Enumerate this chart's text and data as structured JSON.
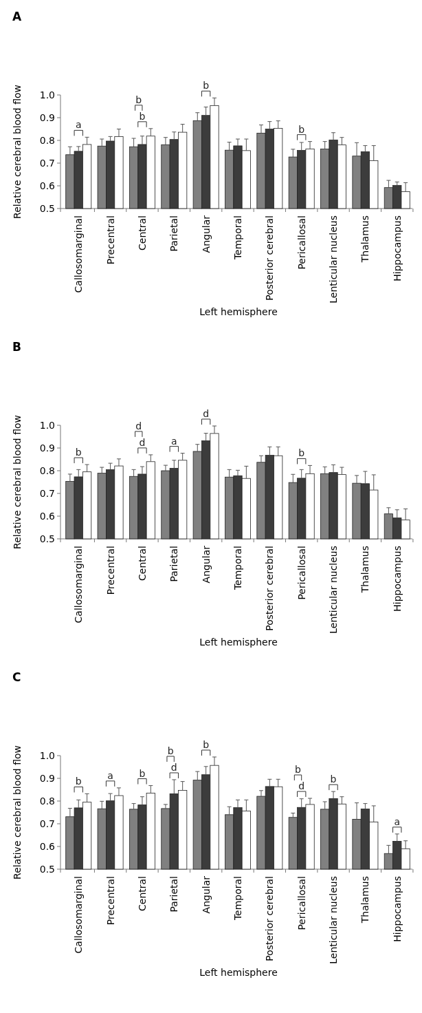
{
  "chart_data": [
    {
      "type": "bar",
      "title": "A",
      "xlabel": "Left hemisphere",
      "ylabel": "Relative cerebral blood flow",
      "categories": [
        "Callosomarginal",
        "Precentral",
        "Central",
        "Parietal",
        "Angular",
        "Temporal",
        "Posterior cerebral",
        "Pericallosal",
        "Lenticular nucleus",
        "Thalamus",
        "Hippocampus"
      ],
      "series": [
        {
          "color": "#808080",
          "values": [
            0.737,
            0.775,
            0.772,
            0.781,
            0.887,
            0.757,
            0.832,
            0.727,
            0.762,
            0.731,
            0.592
          ],
          "errors": [
            [
              0.737,
              0.772
            ],
            [
              0.775,
              0.806
            ],
            [
              0.772,
              0.809
            ],
            [
              0.781,
              0.813
            ],
            [
              0.887,
              0.922
            ],
            [
              0.757,
              0.792
            ],
            [
              0.832,
              0.868
            ],
            [
              0.727,
              0.761
            ],
            [
              0.762,
              0.795
            ],
            [
              0.731,
              0.79
            ],
            [
              0.592,
              0.624
            ]
          ]
        },
        {
          "color": "#3c3c3c",
          "values": [
            0.752,
            0.797,
            0.782,
            0.804,
            0.91,
            0.776,
            0.85,
            0.756,
            0.802,
            0.75,
            0.602
          ],
          "errors": [
            [
              0.752,
              0.773
            ],
            [
              0.797,
              0.817
            ],
            [
              0.782,
              0.819
            ],
            [
              0.804,
              0.837
            ],
            [
              0.91,
              0.947
            ],
            [
              0.776,
              0.806
            ],
            [
              0.85,
              0.883
            ],
            [
              0.756,
              0.791
            ],
            [
              0.802,
              0.834
            ],
            [
              0.75,
              0.777
            ],
            [
              0.602,
              0.617
            ]
          ]
        },
        {
          "color": "#ffffff",
          "values": [
            0.782,
            0.817,
            0.819,
            0.836,
            0.953,
            0.755,
            0.853,
            0.762,
            0.78,
            0.711,
            0.574
          ],
          "errors": [
            [
              0.782,
              0.814
            ],
            [
              0.817,
              0.85
            ],
            [
              0.819,
              0.852
            ],
            [
              0.836,
              0.871
            ],
            [
              0.953,
              0.987
            ],
            [
              0.755,
              0.806
            ],
            [
              0.853,
              0.886
            ],
            [
              0.762,
              0.795
            ],
            [
              0.78,
              0.813
            ],
            [
              0.711,
              0.777
            ],
            [
              0.574,
              0.614
            ]
          ]
        }
      ],
      "ylim": [
        0.5,
        1.0
      ],
      "yticks": [
        {
          "value": 0.5,
          "label": "0.5"
        },
        {
          "value": 0.6,
          "label": "0.6"
        },
        {
          "value": 0.7,
          "label": "0.7"
        },
        {
          "value": 0.8,
          "label": "0.8"
        },
        {
          "value": 0.9,
          "label": "0.9"
        },
        {
          "value": 1.0,
          "label": "1.0"
        }
      ],
      "annotations": [
        "a",
        "b",
        "b",
        "b",
        "b"
      ]
    },
    {
      "type": "bar",
      "title": "B",
      "xlabel": "Left hemisphere",
      "ylabel": "Relative cerebral blood flow",
      "categories": [
        "Callosomarginal",
        "Precentral",
        "Central",
        "Parietal",
        "Angular",
        "Temporal",
        "Posterior cerebral",
        "Pericallosal",
        "Lenticular nucleus",
        "Thalamus",
        "Hippocampus"
      ],
      "series": [
        {
          "color": "#808080",
          "values": [
            0.753,
            0.789,
            0.775,
            0.8,
            0.885,
            0.772,
            0.837,
            0.748,
            0.787,
            0.745,
            0.61
          ],
          "errors": [
            [
              0.753,
              0.785
            ],
            [
              0.789,
              0.815
            ],
            [
              0.775,
              0.805
            ],
            [
              0.8,
              0.824
            ],
            [
              0.885,
              0.916
            ],
            [
              0.772,
              0.805
            ],
            [
              0.837,
              0.866
            ],
            [
              0.748,
              0.784
            ],
            [
              0.787,
              0.817
            ],
            [
              0.745,
              0.779
            ],
            [
              0.61,
              0.637
            ]
          ]
        },
        {
          "color": "#3c3c3c",
          "values": [
            0.773,
            0.805,
            0.785,
            0.811,
            0.932,
            0.778,
            0.868,
            0.767,
            0.792,
            0.743,
            0.592
          ],
          "errors": [
            [
              0.773,
              0.805
            ],
            [
              0.805,
              0.833
            ],
            [
              0.785,
              0.818
            ],
            [
              0.811,
              0.846
            ],
            [
              0.932,
              0.965
            ],
            [
              0.778,
              0.802
            ],
            [
              0.868,
              0.905
            ],
            [
              0.767,
              0.805
            ],
            [
              0.792,
              0.826
            ],
            [
              0.743,
              0.797
            ],
            [
              0.592,
              0.628
            ]
          ]
        },
        {
          "color": "#ffffff",
          "values": [
            0.795,
            0.821,
            0.84,
            0.846,
            0.964,
            0.766,
            0.866,
            0.787,
            0.783,
            0.715,
            0.583
          ],
          "errors": [
            [
              0.795,
              0.827
            ],
            [
              0.821,
              0.852
            ],
            [
              0.84,
              0.87
            ],
            [
              0.846,
              0.877
            ],
            [
              0.964,
              0.997
            ],
            [
              0.766,
              0.82
            ],
            [
              0.866,
              0.905
            ],
            [
              0.787,
              0.823
            ],
            [
              0.783,
              0.815
            ],
            [
              0.715,
              0.782
            ],
            [
              0.583,
              0.632
            ]
          ]
        }
      ],
      "ylim": [
        0.5,
        1.0
      ],
      "yticks": [
        {
          "value": 0.5,
          "label": "0.5"
        },
        {
          "value": 0.6,
          "label": "0.6"
        },
        {
          "value": 0.7,
          "label": "0.7"
        },
        {
          "value": 0.8,
          "label": "0.8"
        },
        {
          "value": 0.9,
          "label": "0.9"
        },
        {
          "value": 1.0,
          "label": "1.0"
        }
      ],
      "annotations": [
        "b",
        "d",
        "d",
        "a",
        "d",
        "b"
      ]
    },
    {
      "type": "bar",
      "title": "C",
      "xlabel": "Left hemisphere",
      "ylabel": "Relative cerebral blood flow",
      "categories": [
        "Callosomarginal",
        "Precentral",
        "Central",
        "Parietal",
        "Angular",
        "Temporal",
        "Posterior cerebral",
        "Pericallosal",
        "Lenticular nucleus",
        "Thalamus",
        "Hippocampus"
      ],
      "series": [
        {
          "color": "#808080",
          "values": [
            0.731,
            0.766,
            0.764,
            0.767,
            0.892,
            0.74,
            0.821,
            0.728,
            0.764,
            0.72,
            0.569
          ],
          "errors": [
            [
              0.731,
              0.768
            ],
            [
              0.766,
              0.799
            ],
            [
              0.764,
              0.789
            ],
            [
              0.767,
              0.785
            ],
            [
              0.892,
              0.93
            ],
            [
              0.74,
              0.775
            ],
            [
              0.821,
              0.846
            ],
            [
              0.728,
              0.747
            ],
            [
              0.764,
              0.797
            ],
            [
              0.72,
              0.792
            ],
            [
              0.569,
              0.605
            ]
          ]
        },
        {
          "color": "#3c3c3c",
          "values": [
            0.77,
            0.801,
            0.783,
            0.832,
            0.916,
            0.771,
            0.864,
            0.772,
            0.811,
            0.765,
            0.623
          ],
          "errors": [
            [
              0.77,
              0.805
            ],
            [
              0.801,
              0.833
            ],
            [
              0.783,
              0.819
            ],
            [
              0.832,
              0.894
            ],
            [
              0.916,
              0.952
            ],
            [
              0.771,
              0.805
            ],
            [
              0.864,
              0.896
            ],
            [
              0.772,
              0.81
            ],
            [
              0.811,
              0.842
            ],
            [
              0.765,
              0.789
            ],
            [
              0.623,
              0.655
            ]
          ]
        },
        {
          "color": "#ffffff",
          "values": [
            0.795,
            0.824,
            0.835,
            0.847,
            0.957,
            0.756,
            0.863,
            0.785,
            0.787,
            0.708,
            0.59
          ],
          "errors": [
            [
              0.795,
              0.832
            ],
            [
              0.824,
              0.858
            ],
            [
              0.835,
              0.868
            ],
            [
              0.847,
              0.886
            ],
            [
              0.957,
              0.994
            ],
            [
              0.756,
              0.805
            ],
            [
              0.863,
              0.896
            ],
            [
              0.785,
              0.812
            ],
            [
              0.787,
              0.819
            ],
            [
              0.708,
              0.779
            ],
            [
              0.59,
              0.625
            ]
          ]
        }
      ],
      "ylim": [
        0.5,
        1.0
      ],
      "yticks": [
        {
          "value": 0.5,
          "label": "0.5"
        },
        {
          "value": 0.6,
          "label": "0.6"
        },
        {
          "value": 0.7,
          "label": "0.7"
        },
        {
          "value": 0.8,
          "label": "0.8"
        },
        {
          "value": 0.9,
          "label": "0.9"
        },
        {
          "value": 1.0,
          "label": "1.0"
        }
      ],
      "annotations": [
        "b",
        "a",
        "b",
        "d",
        "b",
        "b",
        "d",
        "b",
        "b",
        "a"
      ]
    }
  ]
}
